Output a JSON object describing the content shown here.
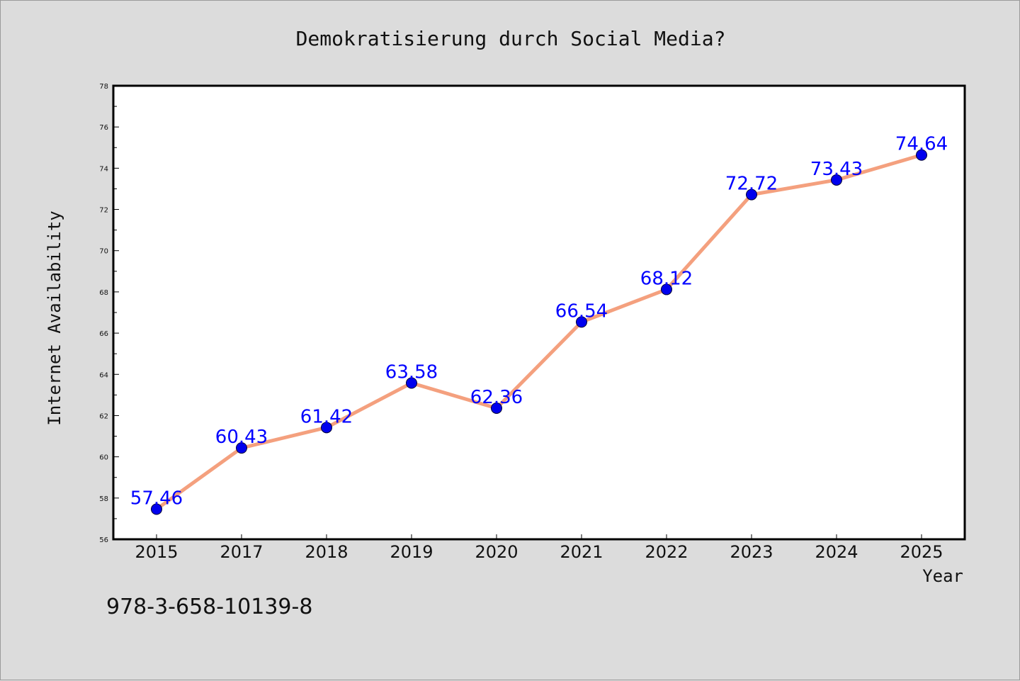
{
  "chart_data": {
    "type": "line",
    "title": "Demokratisierung durch Social Media?",
    "xlabel": "Year",
    "ylabel": "Internet Availability",
    "categories": [
      "2015",
      "2017",
      "2018",
      "2019",
      "2020",
      "2021",
      "2022",
      "2023",
      "2024",
      "2025"
    ],
    "series": [
      {
        "values": [
          57.46,
          60.43,
          61.42,
          63.58,
          62.36,
          66.54,
          68.12,
          72.72,
          73.43,
          74.64
        ],
        "data_labels": [
          "57.46",
          "60.43",
          "61.42",
          "63.58",
          "62.36",
          "66.54",
          "68.12",
          "72.72",
          "73.43",
          "74.64"
        ],
        "line_color": "#f4a07e",
        "marker_color": "#0000ee",
        "label_color": "#0000ff"
      }
    ],
    "ylim": [
      56,
      78
    ],
    "yticks": [
      "56",
      "58",
      "60",
      "62",
      "64",
      "66",
      "68",
      "70",
      "72",
      "74",
      "76",
      "78"
    ],
    "grid": false,
    "legend": "none",
    "background": "#dcdcdc",
    "plot_background": "#ffffff"
  },
  "footer": {
    "isbn": "978-3-658-10139-8"
  }
}
